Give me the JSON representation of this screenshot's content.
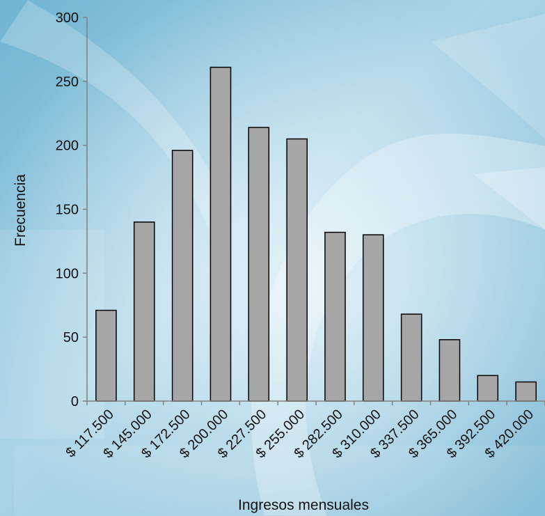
{
  "chart_data": {
    "type": "bar",
    "title": "",
    "xlabel": "Ingresos mensuales",
    "ylabel": "Frecuencia",
    "categories": [
      "$ 117.500",
      "$ 145.000",
      "$ 172.500",
      "$ 200.000",
      "$ 227.500",
      "$ 255.000",
      "$ 282.500",
      "$ 310.000",
      "$ 337.500",
      "$ 365.000",
      "$ 392.500",
      "$ 420.000"
    ],
    "values": [
      71,
      140,
      196,
      261,
      214,
      205,
      132,
      130,
      68,
      48,
      20,
      15
    ],
    "ylim": [
      0,
      300
    ],
    "yticks": [
      0,
      50,
      100,
      150,
      200,
      250,
      300
    ],
    "grid": false,
    "legend": "none",
    "colors": {
      "bar_fill": "#a6a6a6",
      "bar_stroke": "#000000",
      "axis": "#808080",
      "background_light": "#e4f1f8",
      "background_dark": "#88c0d9"
    }
  }
}
